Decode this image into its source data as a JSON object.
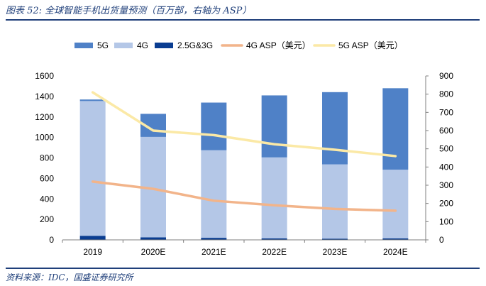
{
  "title": "图表 52:  全球智能手机出货量预测（百万部，右轴为 ASP）",
  "source": "资料来源：IDC，国盛证券研究所",
  "chart_data": {
    "type": "bar",
    "categories": [
      "2019",
      "2020E",
      "2021E",
      "2022E",
      "2023E",
      "2024E"
    ],
    "series": [
      {
        "name": "5G",
        "kind": "bar",
        "axis": "left",
        "stacked": true,
        "color": "#4f81c7",
        "values": [
          15,
          225,
          465,
          605,
          705,
          795
        ]
      },
      {
        "name": "4G",
        "kind": "bar",
        "axis": "left",
        "stacked": true,
        "color": "#b4c7e7",
        "values": [
          1315,
          980,
          855,
          790,
          725,
          670
        ]
      },
      {
        "name": "2.5G&3G",
        "kind": "bar",
        "axis": "left",
        "stacked": true,
        "color": "#0a3d91",
        "values": [
          40,
          25,
          20,
          15,
          12,
          15
        ]
      },
      {
        "name": "4G ASP（美元）",
        "kind": "line",
        "axis": "right",
        "color": "#f2b48a",
        "values": [
          320,
          280,
          215,
          190,
          170,
          160
        ]
      },
      {
        "name": "5G ASP（美元）",
        "kind": "line",
        "axis": "right",
        "color": "#fbe9a6",
        "values": [
          810,
          600,
          575,
          525,
          495,
          460
        ]
      }
    ],
    "ylim": [
      0,
      1600
    ],
    "yticks": [
      0,
      200,
      400,
      600,
      800,
      1000,
      1200,
      1400,
      1600
    ],
    "y2lim": [
      0,
      900
    ],
    "y2ticks": [
      0,
      100,
      200,
      300,
      400,
      500,
      600,
      700,
      800,
      900
    ],
    "grid": false,
    "legend_position": "top"
  }
}
